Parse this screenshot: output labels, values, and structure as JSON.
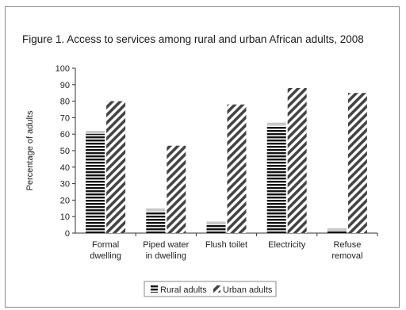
{
  "chart_data": {
    "type": "bar",
    "title": "Figure 1. Access to services among rural and urban African adults, 2008",
    "xlabel": "",
    "ylabel": "Percentage of adults",
    "ylim": [
      0,
      100
    ],
    "yticks": [
      0,
      10,
      20,
      30,
      40,
      50,
      60,
      70,
      80,
      90,
      100
    ],
    "categories": [
      [
        "Formal",
        "dwelling"
      ],
      [
        "Piped water",
        "in dwelling"
      ],
      [
        "Flush toilet"
      ],
      [
        "Electricity"
      ],
      [
        "Refuse",
        "removal"
      ]
    ],
    "series": [
      {
        "name": "Rural adults",
        "values": [
          62,
          15,
          7,
          67,
          3
        ],
        "pattern": "horizontal-stripes"
      },
      {
        "name": "Urban adults",
        "values": [
          80,
          53,
          78,
          88,
          85
        ],
        "pattern": "diagonal-stripes"
      }
    ],
    "grid": false,
    "legend_position": "bottom-center"
  }
}
